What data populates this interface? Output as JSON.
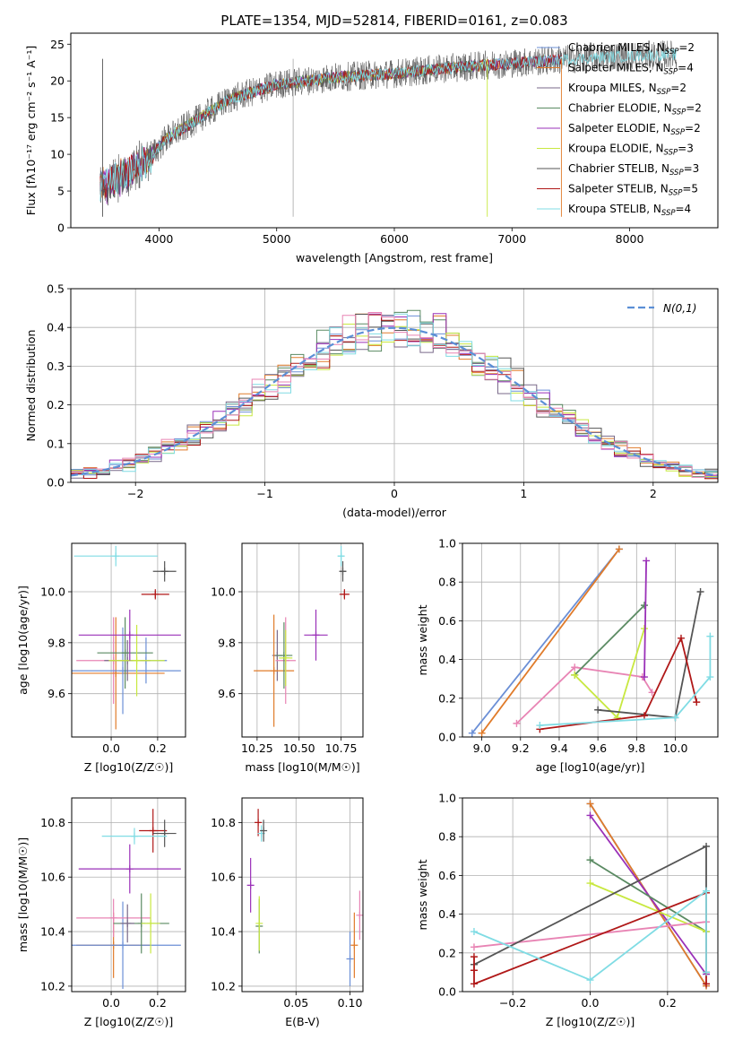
{
  "title": "PLATE=1354, MJD=52814, FIBERID=0161, z=0.083",
  "colors": {
    "series": [
      "#6b8fd6",
      "#e07b2a",
      "#7a6a8a",
      "#5a8a62",
      "#9a30b8",
      "#c8e840",
      "#555555",
      "#b01818",
      "#80dce4"
    ],
    "pink": "#e884b4",
    "normal": "#5b8fd6",
    "grid": "#b0b0b0"
  },
  "legend_labels": {
    "spectrum": [
      "Chabrier MILES, N",
      "Salpeter MILES, N",
      "Kroupa MILES, N",
      "Chabrier ELODIE, N",
      "Salpeter ELODIE, N",
      "Kroupa ELODIE, N",
      "Chabrier STELIB, N",
      "Salpeter STELIB, N",
      "Kroupa STELIB, N"
    ],
    "nssp": [
      2,
      4,
      2,
      2,
      2,
      3,
      3,
      5,
      4
    ],
    "ssp_sub": "SSP",
    "normal": "N(0,1)"
  },
  "chart_data": [
    {
      "type": "line",
      "id": "spectrum",
      "xlabel": "wavelength [Angstrom, rest frame]",
      "ylabel": "Flux [fλ10⁻¹⁷ erg cm⁻² s⁻¹ A⁻¹]",
      "xlim": [
        3250,
        8750
      ],
      "ylim": [
        0,
        26.5
      ],
      "xticks": [
        4000,
        5000,
        6000,
        7000,
        8000
      ],
      "yticks": [
        0,
        5,
        10,
        15,
        20,
        25
      ],
      "grid": false,
      "legend": "top-right",
      "continuum": [
        [
          3500,
          5.5
        ],
        [
          3700,
          7
        ],
        [
          3900,
          9
        ],
        [
          4050,
          12
        ],
        [
          4300,
          14.5
        ],
        [
          4600,
          17.5
        ],
        [
          5000,
          19.5
        ],
        [
          5500,
          20.5
        ],
        [
          6000,
          21
        ],
        [
          6500,
          21.8
        ],
        [
          7000,
          22.4
        ],
        [
          7500,
          23
        ],
        [
          8000,
          23.4
        ],
        [
          8400,
          23.6
        ]
      ]
    },
    {
      "type": "line",
      "id": "residuals",
      "xlabel": "(data-model)/error",
      "ylabel": "Normed distribution",
      "xlim": [
        -2.5,
        2.5
      ],
      "ylim": [
        0,
        0.5
      ],
      "xticks": [
        -2,
        -1,
        0,
        1,
        2
      ],
      "yticks": [
        0.0,
        0.1,
        0.2,
        0.3,
        0.4,
        0.5
      ],
      "grid": true,
      "legend": "top-right",
      "bin_width": 0.1
    },
    {
      "type": "scatter",
      "id": "age_vs_Z",
      "xlabel": "Z [log10(Z/Z☉)]",
      "ylabel": "age [log10(age/yr)]",
      "xlim": [
        -0.17,
        0.32
      ],
      "ylim": [
        9.43,
        10.19
      ],
      "xticks": [
        0.0,
        0.2
      ],
      "yticks": [
        9.6,
        9.8,
        10.0
      ],
      "grid": true,
      "points": [
        {
          "x": 0.01,
          "y": 9.73,
          "xerr": 0.16,
          "yerr": 0.17,
          "color": "pink"
        },
        {
          "x": 0.15,
          "y": 9.73,
          "xerr": 0.09,
          "yerr": 0.09
        },
        {
          "x": 0.02,
          "y": 9.68,
          "xerr": 0.21,
          "yerr": 0.22,
          "color": "#e07b2a"
        },
        {
          "x": 0.05,
          "y": 9.69,
          "xerr": 0.25,
          "yerr": 0.17,
          "color": "#6b8fd6"
        },
        {
          "x": 0.07,
          "y": 9.73,
          "xerr": 0.1,
          "yerr": 0.08,
          "color": "#7a6a8a"
        },
        {
          "x": 0.06,
          "y": 9.76,
          "xerr": 0.12,
          "yerr": 0.14,
          "color": "#5a8a62"
        },
        {
          "x": 0.11,
          "y": 9.73,
          "xerr": 0.12,
          "yerr": 0.14,
          "color": "#c8e840"
        },
        {
          "x": 0.08,
          "y": 9.83,
          "xerr": 0.22,
          "yerr": 0.1,
          "color": "#9a30b8"
        },
        {
          "x": 0.19,
          "y": 9.99,
          "xerr": 0.06,
          "yerr": 0.02,
          "color": "#b01818"
        },
        {
          "x": 0.23,
          "y": 10.08,
          "xerr": 0.05,
          "yerr": 0.04,
          "color": "#555555"
        },
        {
          "x": 0.02,
          "y": 10.14,
          "xerr": 0.18,
          "yerr": 0.04,
          "color": "#80dce4"
        }
      ]
    },
    {
      "type": "scatter",
      "id": "age_vs_mass",
      "xlabel": "mass [log10(M/M☉)]",
      "ylabel": "",
      "xlim": [
        10.16,
        10.88
      ],
      "ylim": [
        9.43,
        10.19
      ],
      "xticks": [
        10.25,
        10.5,
        10.75
      ],
      "yticks": [
        9.6,
        9.8,
        10.0
      ],
      "grid": true,
      "points": [
        {
          "x": 10.37,
          "y": 9.75,
          "xerr": 0.03,
          "yerr": 0.1,
          "color": "#7a6a8a"
        },
        {
          "x": 10.35,
          "y": 9.69,
          "xerr": 0.12,
          "yerr": 0.22,
          "color": "#e07b2a"
        },
        {
          "x": 10.42,
          "y": 9.73,
          "xerr": 0.06,
          "yerr": 0.17,
          "color": "pink"
        },
        {
          "x": 10.41,
          "y": 9.75,
          "xerr": 0.05,
          "yerr": 0.13,
          "color": "#5a8a62"
        },
        {
          "x": 10.42,
          "y": 9.74,
          "xerr": 0.04,
          "yerr": 0.11,
          "color": "#c8e840"
        },
        {
          "x": 10.6,
          "y": 9.83,
          "xerr": 0.07,
          "yerr": 0.1,
          "color": "#9a30b8"
        },
        {
          "x": 10.77,
          "y": 9.99,
          "xerr": 0.03,
          "yerr": 0.02,
          "color": "#b01818"
        },
        {
          "x": 10.76,
          "y": 10.08,
          "xerr": 0.02,
          "yerr": 0.04,
          "color": "#555555"
        },
        {
          "x": 10.75,
          "y": 10.14,
          "xerr": 0.02,
          "yerr": 0.04,
          "color": "#80dce4"
        }
      ]
    },
    {
      "type": "line",
      "id": "mw_vs_age",
      "xlabel": "age [log10(age/yr)]",
      "ylabel": "mass weight",
      "xlim": [
        8.9,
        10.22
      ],
      "ylim": [
        0,
        1.0
      ],
      "xticks": [
        9.0,
        9.2,
        9.4,
        9.6,
        9.8,
        10.0
      ],
      "yticks": [
        0.0,
        0.2,
        0.4,
        0.6,
        0.8,
        1.0
      ],
      "grid": true,
      "series": [
        {
          "color": "#6b8fd6",
          "x": [
            8.95,
            9.71
          ],
          "y": [
            0.02,
            0.97
          ]
        },
        {
          "color": "#e07b2a",
          "x": [
            9.0,
            9.71
          ],
          "y": [
            0.02,
            0.97
          ]
        },
        {
          "color": "pink",
          "x": [
            9.18,
            9.48,
            9.83,
            9.88
          ],
          "y": [
            0.07,
            0.36,
            0.31,
            0.23
          ]
        },
        {
          "color": "#5a8a62",
          "x": [
            9.48,
            9.84
          ],
          "y": [
            0.32,
            0.68
          ]
        },
        {
          "color": "#c8e840",
          "x": [
            9.48,
            9.7,
            9.84
          ],
          "y": [
            0.32,
            0.1,
            0.56
          ]
        },
        {
          "color": "#9a30b8",
          "x": [
            9.84,
            9.85
          ],
          "y": [
            0.31,
            0.91
          ]
        },
        {
          "color": "#555555",
          "x": [
            9.6,
            10.0,
            10.13
          ],
          "y": [
            0.14,
            0.1,
            0.75
          ]
        },
        {
          "color": "#b01818",
          "x": [
            9.3,
            9.84,
            10.03,
            10.11
          ],
          "y": [
            0.04,
            0.11,
            0.51,
            0.18
          ]
        },
        {
          "color": "#80dce4",
          "x": [
            9.3,
            10.0,
            10.18,
            10.18
          ],
          "y": [
            0.06,
            0.1,
            0.31,
            0.52
          ]
        }
      ]
    },
    {
      "type": "scatter",
      "id": "mass_vs_Z",
      "xlabel": "Z [log10(Z/Z☉)]",
      "ylabel": "mass [log10(M/M☉)]",
      "xlim": [
        -0.17,
        0.32
      ],
      "ylim": [
        10.18,
        10.89
      ],
      "xticks": [
        0.0,
        0.2
      ],
      "yticks": [
        10.2,
        10.4,
        10.6,
        10.8
      ],
      "grid": true,
      "points": [
        {
          "x": 0.01,
          "y": 10.35,
          "xerr": 0.16,
          "yerr": 0.12,
          "color": "#e07b2a"
        },
        {
          "x": 0.05,
          "y": 10.35,
          "xerr": 0.25,
          "yerr": 0.16,
          "color": "#6b8fd6"
        },
        {
          "x": 0.01,
          "y": 10.45,
          "xerr": 0.16,
          "yerr": 0.07,
          "color": "pink"
        },
        {
          "x": 0.13,
          "y": 10.43,
          "xerr": 0.12,
          "yerr": 0.11,
          "color": "#5a8a62"
        },
        {
          "x": 0.17,
          "y": 10.43,
          "xerr": 0.04,
          "yerr": 0.11,
          "color": "#c8e840"
        },
        {
          "x": 0.07,
          "y": 10.43,
          "xerr": 0.03,
          "yerr": 0.07,
          "color": "#7a6a8a"
        },
        {
          "x": 0.08,
          "y": 10.63,
          "xerr": 0.22,
          "yerr": 0.09,
          "color": "#9a30b8"
        },
        {
          "x": 0.18,
          "y": 10.77,
          "xerr": 0.06,
          "yerr": 0.08,
          "color": "#b01818"
        },
        {
          "x": 0.23,
          "y": 10.76,
          "xerr": 0.05,
          "yerr": 0.05,
          "color": "#555555"
        },
        {
          "x": 0.1,
          "y": 10.75,
          "xerr": 0.14,
          "yerr": 0.03,
          "color": "#80dce4"
        }
      ]
    },
    {
      "type": "scatter",
      "id": "mass_vs_EBV",
      "xlabel": "E(B-V)",
      "ylabel": "",
      "xlim": [
        0.0,
        0.112
      ],
      "ylim": [
        10.18,
        10.89
      ],
      "xticks": [
        0.05,
        0.1
      ],
      "yticks": [
        10.2,
        10.4,
        10.6,
        10.8
      ],
      "grid": true,
      "points": [
        {
          "x": 0.008,
          "y": 10.57,
          "xerr": 0.0,
          "yerr": 0.1,
          "color": "#9a30b8"
        },
        {
          "x": 0.015,
          "y": 10.8,
          "xerr": 0.0,
          "yerr": 0.05,
          "color": "#b01818"
        },
        {
          "x": 0.016,
          "y": 10.42,
          "xerr": 0.0,
          "yerr": 0.1,
          "color": "#5a8a62"
        },
        {
          "x": 0.016,
          "y": 10.43,
          "xerr": 0.0,
          "yerr": 0.1,
          "color": "#c8e840"
        },
        {
          "x": 0.018,
          "y": 10.76,
          "xerr": 0.0,
          "yerr": 0.03,
          "color": "#80dce4"
        },
        {
          "x": 0.02,
          "y": 10.77,
          "xerr": 0.0,
          "yerr": 0.04,
          "color": "#555555"
        },
        {
          "x": 0.1,
          "y": 10.3,
          "xerr": 0.0,
          "yerr": 0.1,
          "color": "#6b8fd6"
        },
        {
          "x": 0.104,
          "y": 10.35,
          "xerr": 0.0,
          "yerr": 0.12,
          "color": "#e07b2a"
        },
        {
          "x": 0.109,
          "y": 10.46,
          "xerr": 0.0,
          "yerr": 0.09,
          "color": "pink"
        }
      ]
    },
    {
      "type": "line",
      "id": "mw_vs_Z",
      "xlabel": "Z [log10(Z/Z☉)]",
      "ylabel": "mass weight",
      "xlim": [
        -0.33,
        0.33
      ],
      "ylim": [
        0,
        1.0
      ],
      "xticks": [
        -0.2,
        0.0,
        0.2
      ],
      "yticks": [
        0.0,
        0.2,
        0.4,
        0.6,
        0.8,
        1.0
      ],
      "grid": true,
      "series": [
        {
          "color": "#6b8fd6",
          "x": [
            0.0,
            0.3
          ],
          "y": [
            0.97,
            0.03
          ]
        },
        {
          "color": "#e07b2a",
          "x": [
            0.0,
            0.3
          ],
          "y": [
            0.97,
            0.03
          ]
        },
        {
          "color": "#9a30b8",
          "x": [
            0.0,
            0.3
          ],
          "y": [
            0.91,
            0.09
          ]
        },
        {
          "color": "#5a8a62",
          "x": [
            0.0,
            0.3
          ],
          "y": [
            0.68,
            0.31
          ]
        },
        {
          "color": "#c8e840",
          "x": [
            0.0,
            0.3
          ],
          "y": [
            0.56,
            0.31
          ]
        },
        {
          "color": "pink",
          "x": [
            -0.3,
            0.3
          ],
          "y": [
            0.23,
            0.36
          ]
        },
        {
          "color": "#555555",
          "x": [
            -0.3,
            0.3,
            0.3
          ],
          "y": [
            0.14,
            0.75,
            0.1
          ]
        },
        {
          "color": "#b01818",
          "x": [
            -0.3,
            -0.3,
            -0.3,
            0.3,
            0.3
          ],
          "y": [
            0.18,
            0.11,
            0.04,
            0.51,
            0.04
          ]
        },
        {
          "color": "#80dce4",
          "x": [
            -0.3,
            0.0,
            0.3,
            0.3
          ],
          "y": [
            0.31,
            0.06,
            0.52,
            0.1
          ]
        }
      ]
    }
  ]
}
